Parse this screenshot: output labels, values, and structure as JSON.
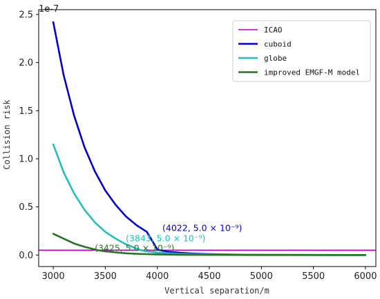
{
  "chart_data": {
    "type": "line",
    "title": "",
    "xlabel": "Vertical separation/m",
    "ylabel": "Collision risk",
    "y_multiplier_label": "1e-7",
    "xlim": [
      2860,
      6100
    ],
    "ylim": [
      -0.12,
      2.55
    ],
    "y_unit_scale": 1e-07,
    "x_ticks": [
      3000,
      3500,
      4000,
      4500,
      5000,
      5500,
      6000
    ],
    "y_ticks": [
      0.0,
      0.5,
      1.0,
      1.5,
      2.0,
      2.5
    ],
    "y_tick_labels": [
      "0.0",
      "0.5",
      "1.0",
      "1.5",
      "2.0",
      "2.5"
    ],
    "legend_position": "top-right",
    "series": [
      {
        "name": "ICAO",
        "color": "#bf00bf",
        "x": [
          2860,
          6100
        ],
        "y": [
          0.05,
          0.05
        ]
      },
      {
        "name": "cuboid",
        "color": "#0000cc",
        "x": [
          3000,
          3100,
          3200,
          3300,
          3400,
          3500,
          3600,
          3700,
          3800,
          3900,
          4000,
          4022,
          4100,
          4200,
          4300,
          4400,
          4500,
          4700,
          5000,
          5500,
          6000
        ],
        "y": [
          2.42,
          1.87,
          1.45,
          1.12,
          0.87,
          0.67,
          0.52,
          0.4,
          0.31,
          0.24,
          0.058,
          0.05,
          0.035,
          0.025,
          0.018,
          0.013,
          0.009,
          0.005,
          0.002,
          0.0005,
          0.0001
        ]
      },
      {
        "name": "globe",
        "color": "#1fbfbf",
        "x": [
          3000,
          3100,
          3200,
          3300,
          3400,
          3500,
          3600,
          3700,
          3800,
          3843,
          3900,
          4000,
          4200,
          4500,
          5000,
          5500,
          6000
        ],
        "y": [
          1.15,
          0.86,
          0.64,
          0.47,
          0.34,
          0.24,
          0.17,
          0.11,
          0.068,
          0.05,
          0.038,
          0.025,
          0.012,
          0.005,
          0.001,
          0.0002,
          0.0
        ]
      },
      {
        "name": "improved EMGF-M model",
        "color": "#267326",
        "x": [
          3000,
          3100,
          3200,
          3300,
          3400,
          3425,
          3500,
          3600,
          3700,
          3800,
          4000,
          4200,
          4500,
          5000,
          5500,
          6000
        ],
        "y": [
          0.22,
          0.17,
          0.12,
          0.085,
          0.058,
          0.05,
          0.038,
          0.027,
          0.018,
          0.012,
          0.006,
          0.003,
          0.001,
          0.0002,
          0.0,
          0.0
        ]
      }
    ],
    "annotations": [
      {
        "text": "(4022, 5.0 × 10⁻⁹)",
        "x": 4022,
        "y": 0.05,
        "color": "#0000cc"
      },
      {
        "text": "(3843, 5.0 × 10⁻⁹)",
        "x": 3843,
        "y": 0.05,
        "color": "#1fbfbf"
      },
      {
        "text": "(3425, 5.0 × 10⁻⁹)",
        "x": 3425,
        "y": 0.05,
        "color": "#267326"
      }
    ]
  }
}
